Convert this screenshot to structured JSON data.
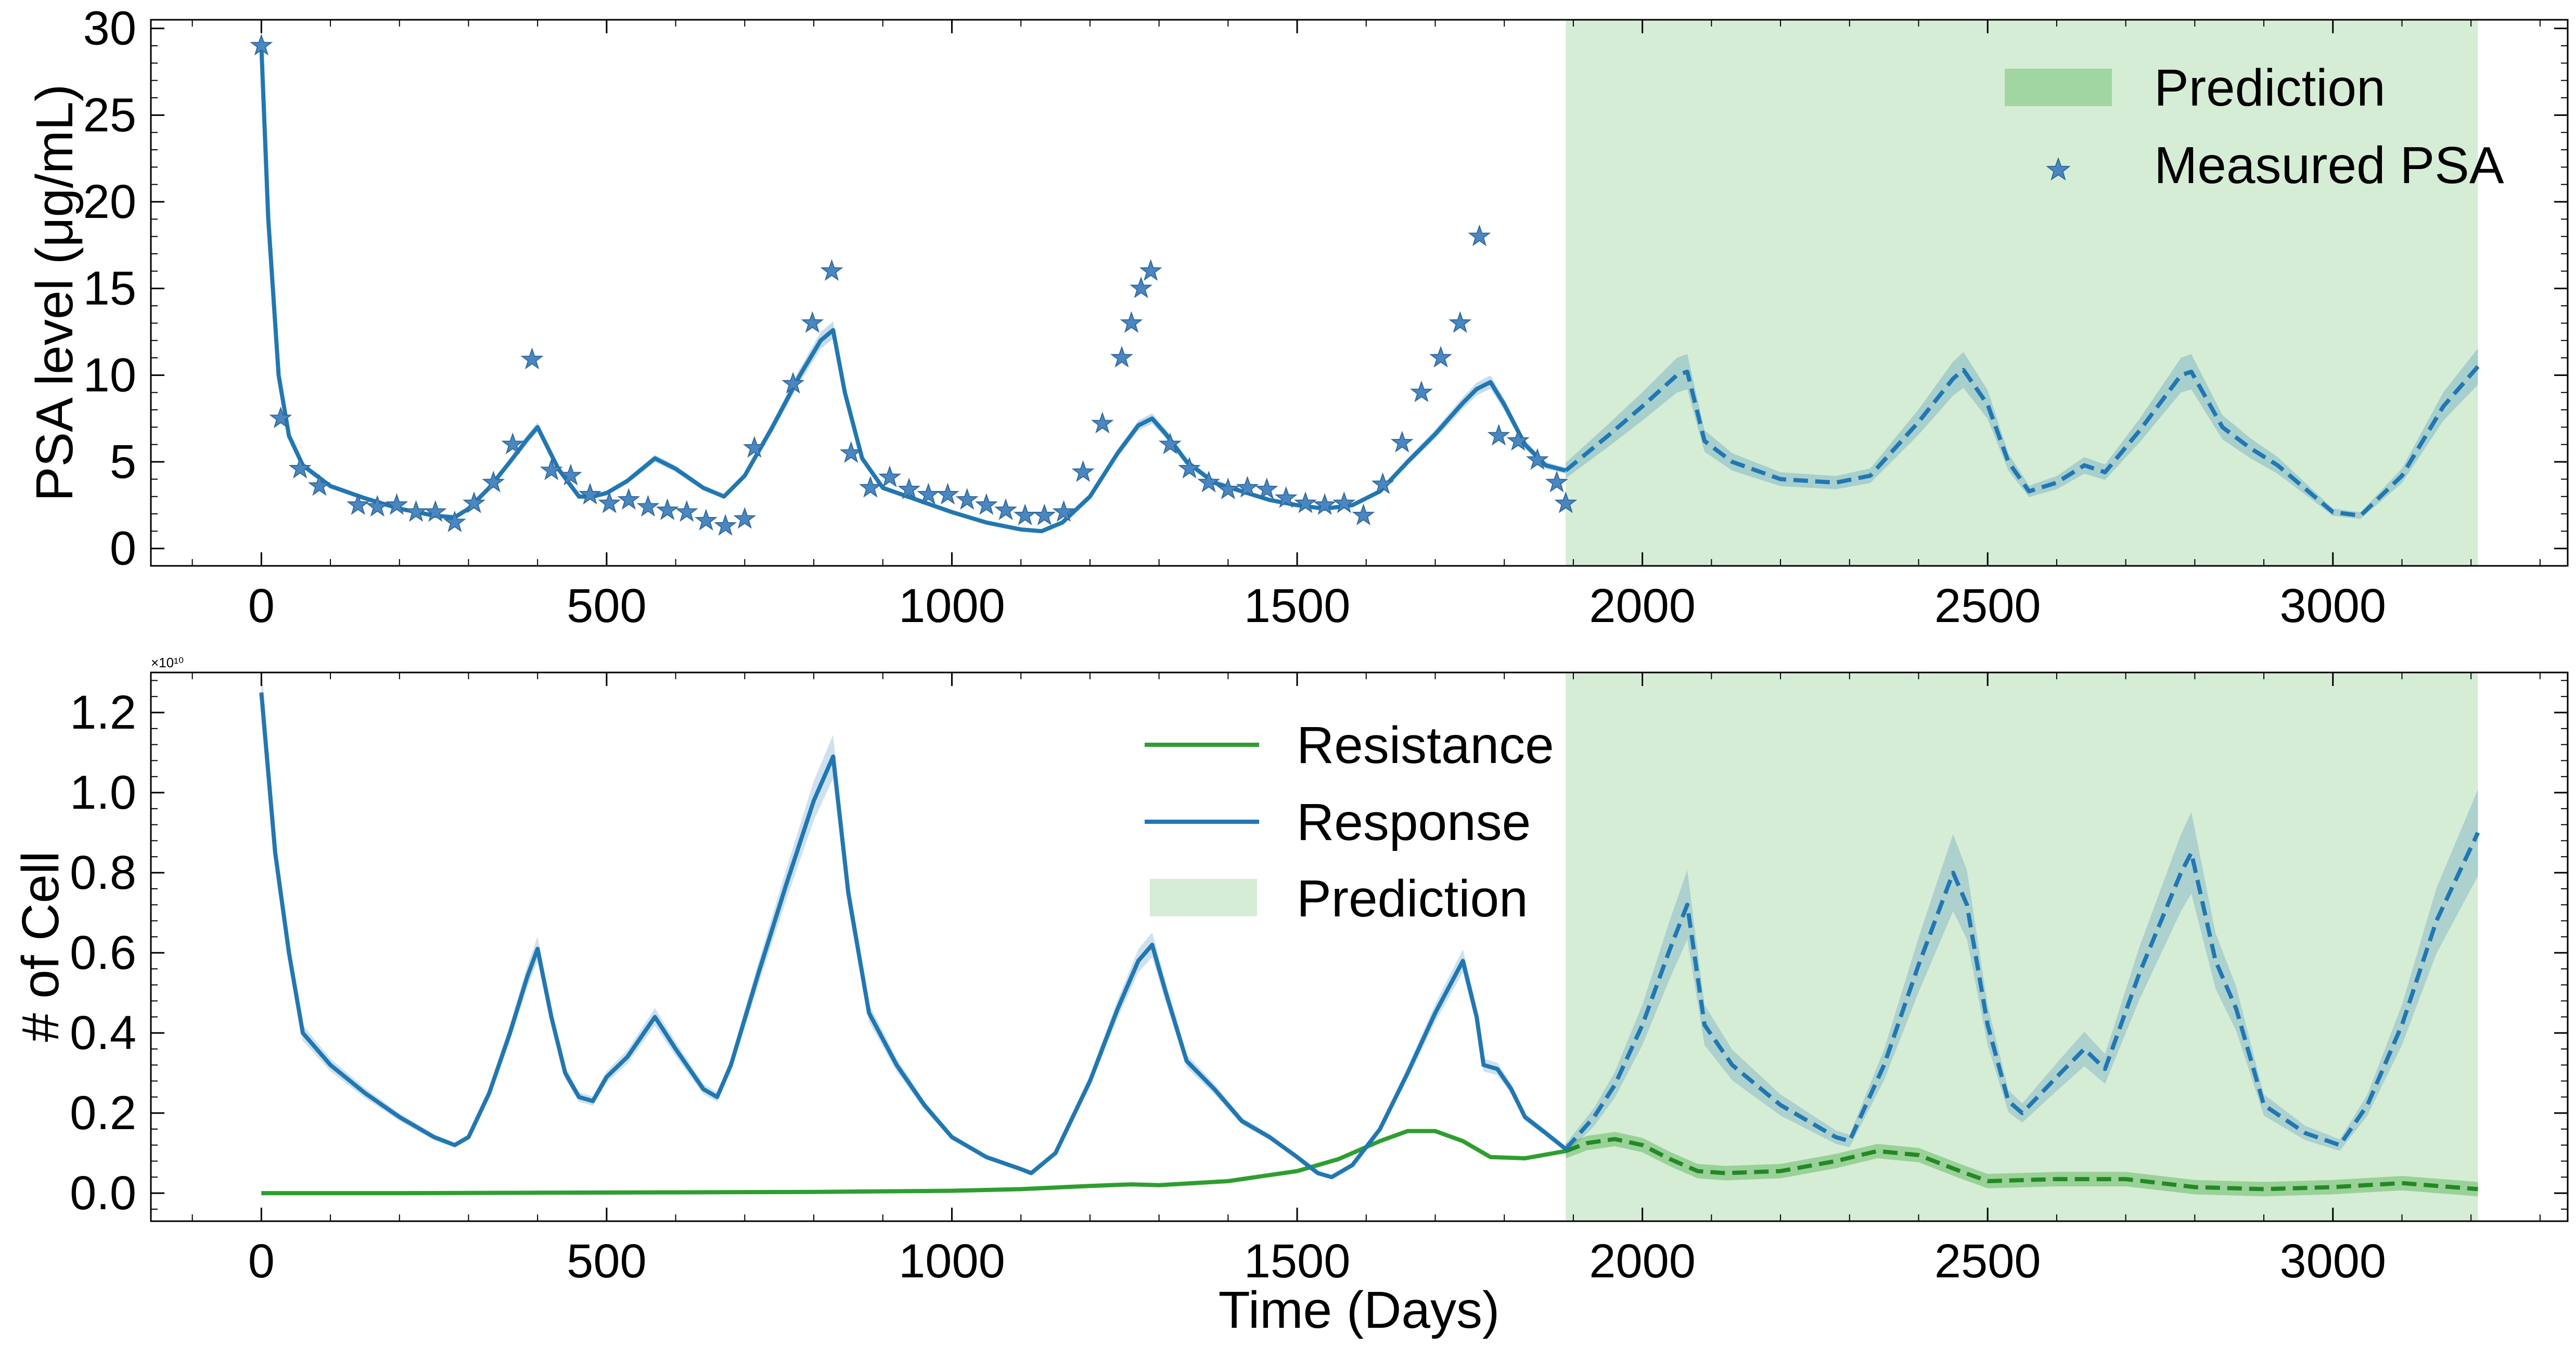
{
  "colors": {
    "response": "#1f77b4",
    "resistance": "#2ca02c",
    "marker": "#4a86c0",
    "prediction_fill": "#2ca02c"
  },
  "chart_data": [
    {
      "type": "line",
      "xlabel": "",
      "ylabel": "PSA level (μg/mL)",
      "xlim": [
        -160,
        3340
      ],
      "ylim": [
        -1,
        30.5
      ],
      "xticks": [
        0,
        500,
        1000,
        1500,
        2000,
        2500,
        3000
      ],
      "yticks": [
        0,
        5,
        10,
        15,
        20,
        25,
        30
      ],
      "prediction_region": [
        1889,
        3210
      ],
      "legend": {
        "placement": "top-right",
        "entries": [
          "Prediction",
          "Measured PSA"
        ]
      },
      "measured_psa": {
        "name": "Measured PSA",
        "x": [
          0,
          28,
          56,
          84,
          140,
          168,
          196,
          224,
          252,
          280,
          308,
          336,
          364,
          392,
          420,
          448,
          476,
          504,
          532,
          560,
          588,
          616,
          644,
          672,
          700,
          714,
          770,
          798,
          826,
          854,
          882,
          910,
          938,
          966,
          994,
          1022,
          1050,
          1078,
          1106,
          1134,
          1162,
          1190,
          1218,
          1246,
          1260,
          1274,
          1288,
          1316,
          1344,
          1372,
          1400,
          1428,
          1456,
          1484,
          1512,
          1540,
          1568,
          1596,
          1624,
          1652,
          1680,
          1708,
          1736,
          1764,
          1792,
          1820,
          1848,
          1876,
          1889
        ],
        "y": [
          29,
          7.5,
          4.6,
          3.6,
          2.5,
          2.4,
          2.5,
          2.1,
          2.1,
          1.5,
          2.6,
          3.8,
          6,
          10.9,
          4.5,
          4.2,
          3.1,
          2.6,
          2.8,
          2.4,
          2.2,
          2.1,
          1.6,
          1.3,
          1.7,
          5.8,
          9.5,
          13,
          16,
          5.5,
          3.5,
          4.1,
          3.4,
          3.1,
          3.1,
          2.8,
          2.5,
          2.2,
          1.9,
          1.9,
          2.1,
          4.4,
          7.2,
          11,
          13,
          15,
          16,
          6,
          4.6,
          3.8,
          3.4,
          3.5,
          3.4,
          2.9,
          2.6,
          2.5,
          2.6,
          1.9,
          3.7,
          6.1,
          9,
          11,
          13,
          18,
          6.5,
          6.2,
          5.1,
          3.8,
          2.6
        ]
      },
      "fitted_psa": {
        "name": "",
        "x": [
          0,
          10,
          25,
          40,
          60,
          100,
          150,
          200,
          250,
          280,
          300,
          330,
          360,
          385,
          400,
          415,
          430,
          460,
          480,
          500,
          530,
          570,
          600,
          640,
          670,
          700,
          740,
          780,
          810,
          828,
          845,
          870,
          900,
          950,
          1000,
          1050,
          1100,
          1130,
          1160,
          1200,
          1240,
          1270,
          1290,
          1310,
          1340,
          1380,
          1420,
          1460,
          1500,
          1540,
          1580,
          1620,
          1660,
          1700,
          1740,
          1760,
          1780,
          1800,
          1830,
          1860,
          1889
        ],
        "y": [
          29,
          19,
          10,
          6.5,
          4.8,
          3.6,
          2.9,
          2.3,
          1.9,
          1.8,
          2.3,
          3.5,
          5,
          6.3,
          7,
          5.8,
          4.6,
          3,
          3,
          3.2,
          3.9,
          5.2,
          4.6,
          3.5,
          3,
          4.2,
          7,
          10,
          12,
          12.6,
          9,
          5.2,
          3.5,
          2.8,
          2.1,
          1.5,
          1.1,
          1,
          1.5,
          3,
          5.5,
          7.1,
          7.5,
          6.6,
          5,
          3.8,
          3.3,
          2.8,
          2.5,
          2.3,
          2.5,
          3.3,
          5,
          6.6,
          8.4,
          9.2,
          9.6,
          8.3,
          6,
          4.8,
          4.5
        ]
      },
      "predicted_psa": {
        "name": "",
        "x": [
          1889,
          1950,
          2000,
          2050,
          2065,
          2090,
          2130,
          2200,
          2280,
          2330,
          2400,
          2450,
          2465,
          2500,
          2530,
          2560,
          2600,
          2640,
          2670,
          2720,
          2780,
          2795,
          2840,
          2880,
          2920,
          3000,
          3040,
          3100,
          3160,
          3210
        ],
        "y": [
          4.5,
          6.5,
          8.2,
          10,
          10.2,
          6.2,
          5,
          4,
          3.8,
          4.2,
          7.3,
          9.8,
          10.3,
          8.3,
          5,
          3.3,
          3.8,
          4.8,
          4.4,
          6.8,
          10,
          10.2,
          7,
          5.8,
          4.8,
          2.1,
          1.9,
          4.2,
          8.2,
          10.5
        ]
      }
    },
    {
      "type": "line",
      "xlabel": "Time (Days)",
      "ylabel": "# of Cell",
      "offset_text": "×10¹⁰",
      "xlim": [
        -160,
        3340
      ],
      "ylim": [
        -0.07,
        1.3
      ],
      "xticks": [
        0,
        500,
        1000,
        1500,
        2000,
        2500,
        3000
      ],
      "yticks": [
        0.0,
        0.2,
        0.4,
        0.6,
        0.8,
        1.0,
        1.2
      ],
      "ytick_labels": [
        "0.0",
        "0.2",
        "0.4",
        "0.6",
        "0.8",
        "1.0",
        "1.2"
      ],
      "prediction_region": [
        1889,
        3210
      ],
      "legend": {
        "placement": "top-center",
        "entries": [
          "Resistance",
          "Response",
          "Prediction"
        ]
      },
      "series": [
        {
          "name": "Response",
          "x": [
            0,
            20,
            40,
            60,
            100,
            150,
            200,
            250,
            280,
            300,
            330,
            360,
            385,
            400,
            420,
            440,
            460,
            480,
            500,
            530,
            570,
            600,
            640,
            660,
            680,
            720,
            760,
            800,
            828,
            850,
            880,
            920,
            960,
            1000,
            1050,
            1100,
            1115,
            1150,
            1200,
            1240,
            1270,
            1290,
            1310,
            1340,
            1380,
            1420,
            1460,
            1500,
            1530,
            1550,
            1580,
            1620,
            1660,
            1700,
            1740,
            1760,
            1770,
            1790,
            1810,
            1830,
            1860,
            1889
          ],
          "y": [
            1.25,
            0.85,
            0.6,
            0.4,
            0.32,
            0.25,
            0.19,
            0.14,
            0.12,
            0.14,
            0.25,
            0.4,
            0.54,
            0.61,
            0.44,
            0.3,
            0.24,
            0.23,
            0.29,
            0.34,
            0.44,
            0.36,
            0.26,
            0.24,
            0.32,
            0.55,
            0.77,
            0.98,
            1.09,
            0.75,
            0.45,
            0.32,
            0.22,
            0.14,
            0.09,
            0.06,
            0.05,
            0.1,
            0.28,
            0.46,
            0.58,
            0.62,
            0.5,
            0.33,
            0.26,
            0.18,
            0.14,
            0.09,
            0.05,
            0.04,
            0.07,
            0.16,
            0.3,
            0.45,
            0.58,
            0.44,
            0.32,
            0.31,
            0.26,
            0.19,
            0.15,
            0.11
          ]
        },
        {
          "name": "Resistance",
          "x": [
            0,
            200,
            400,
            600,
            800,
            1000,
            1100,
            1200,
            1260,
            1300,
            1400,
            1500,
            1560,
            1620,
            1660,
            1700,
            1740,
            1780,
            1830,
            1889
          ],
          "y": [
            0.0,
            0.0,
            0.001,
            0.002,
            0.003,
            0.006,
            0.01,
            0.018,
            0.022,
            0.02,
            0.03,
            0.055,
            0.085,
            0.13,
            0.155,
            0.155,
            0.13,
            0.09,
            0.087,
            0.105
          ]
        },
        {
          "name": "",
          "x": [
            1889,
            1930,
            1960,
            2000,
            2040,
            2065,
            2090,
            2130,
            2200,
            2280,
            2300,
            2350,
            2400,
            2450,
            2470,
            2500,
            2530,
            2550,
            2600,
            2640,
            2670,
            2720,
            2780,
            2795,
            2830,
            2860,
            2900,
            2960,
            3010,
            3050,
            3100,
            3150,
            3210
          ],
          "y": [
            0.11,
            0.19,
            0.27,
            0.42,
            0.61,
            0.72,
            0.42,
            0.32,
            0.22,
            0.14,
            0.13,
            0.32,
            0.57,
            0.8,
            0.72,
            0.42,
            0.23,
            0.2,
            0.29,
            0.36,
            0.31,
            0.55,
            0.8,
            0.85,
            0.58,
            0.46,
            0.22,
            0.15,
            0.12,
            0.22,
            0.42,
            0.68,
            0.9
          ]
        },
        {
          "name": "",
          "x": [
            1889,
            1920,
            1960,
            2000,
            2040,
            2080,
            2120,
            2200,
            2280,
            2340,
            2400,
            2460,
            2500,
            2600,
            2700,
            2800,
            2900,
            3000,
            3100,
            3210
          ],
          "y": [
            0.105,
            0.125,
            0.135,
            0.12,
            0.085,
            0.055,
            0.05,
            0.055,
            0.08,
            0.105,
            0.095,
            0.055,
            0.03,
            0.035,
            0.035,
            0.015,
            0.01,
            0.015,
            0.025,
            0.01
          ]
        }
      ]
    }
  ]
}
